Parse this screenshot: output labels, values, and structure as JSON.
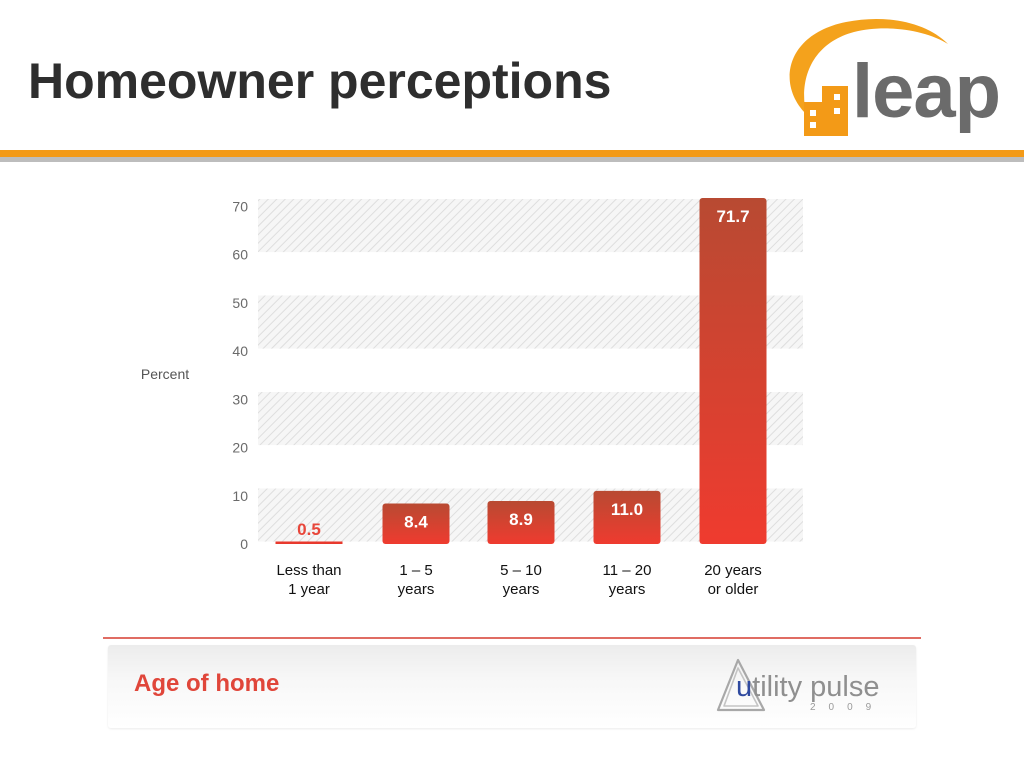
{
  "header": {
    "title": "Homeowner perceptions",
    "logo_text": "leap"
  },
  "chart_data": {
    "type": "bar",
    "title": "Age of home",
    "ylabel": "Percent",
    "xlabel": "",
    "ylim": [
      0,
      70
    ],
    "yticks": [
      0,
      10,
      20,
      30,
      40,
      50,
      60,
      70
    ],
    "categories": [
      [
        "Less than",
        "1 year"
      ],
      [
        "1 – 5",
        "years"
      ],
      [
        "5 – 10",
        "years"
      ],
      [
        "11 – 20",
        "years"
      ],
      [
        "20 years",
        "or older"
      ]
    ],
    "values": [
      0.5,
      8.4,
      8.9,
      11.0,
      71.7
    ],
    "value_labels": [
      "0.5",
      "8.4",
      "8.9",
      "11.0",
      "71.7"
    ],
    "bar_color": "#e8392d",
    "grid": "hatched bands"
  },
  "footer": {
    "section_label": "Age of home",
    "brand_u": "u",
    "brand_rest": "tility pulse",
    "brand_year": "2009"
  },
  "colors": {
    "accent_orange": "#f39a17",
    "bar_red": "#e8392d",
    "label_red": "#e0463a",
    "title_dark": "#2e2e2e",
    "logo_grey": "#6b6b6b"
  }
}
